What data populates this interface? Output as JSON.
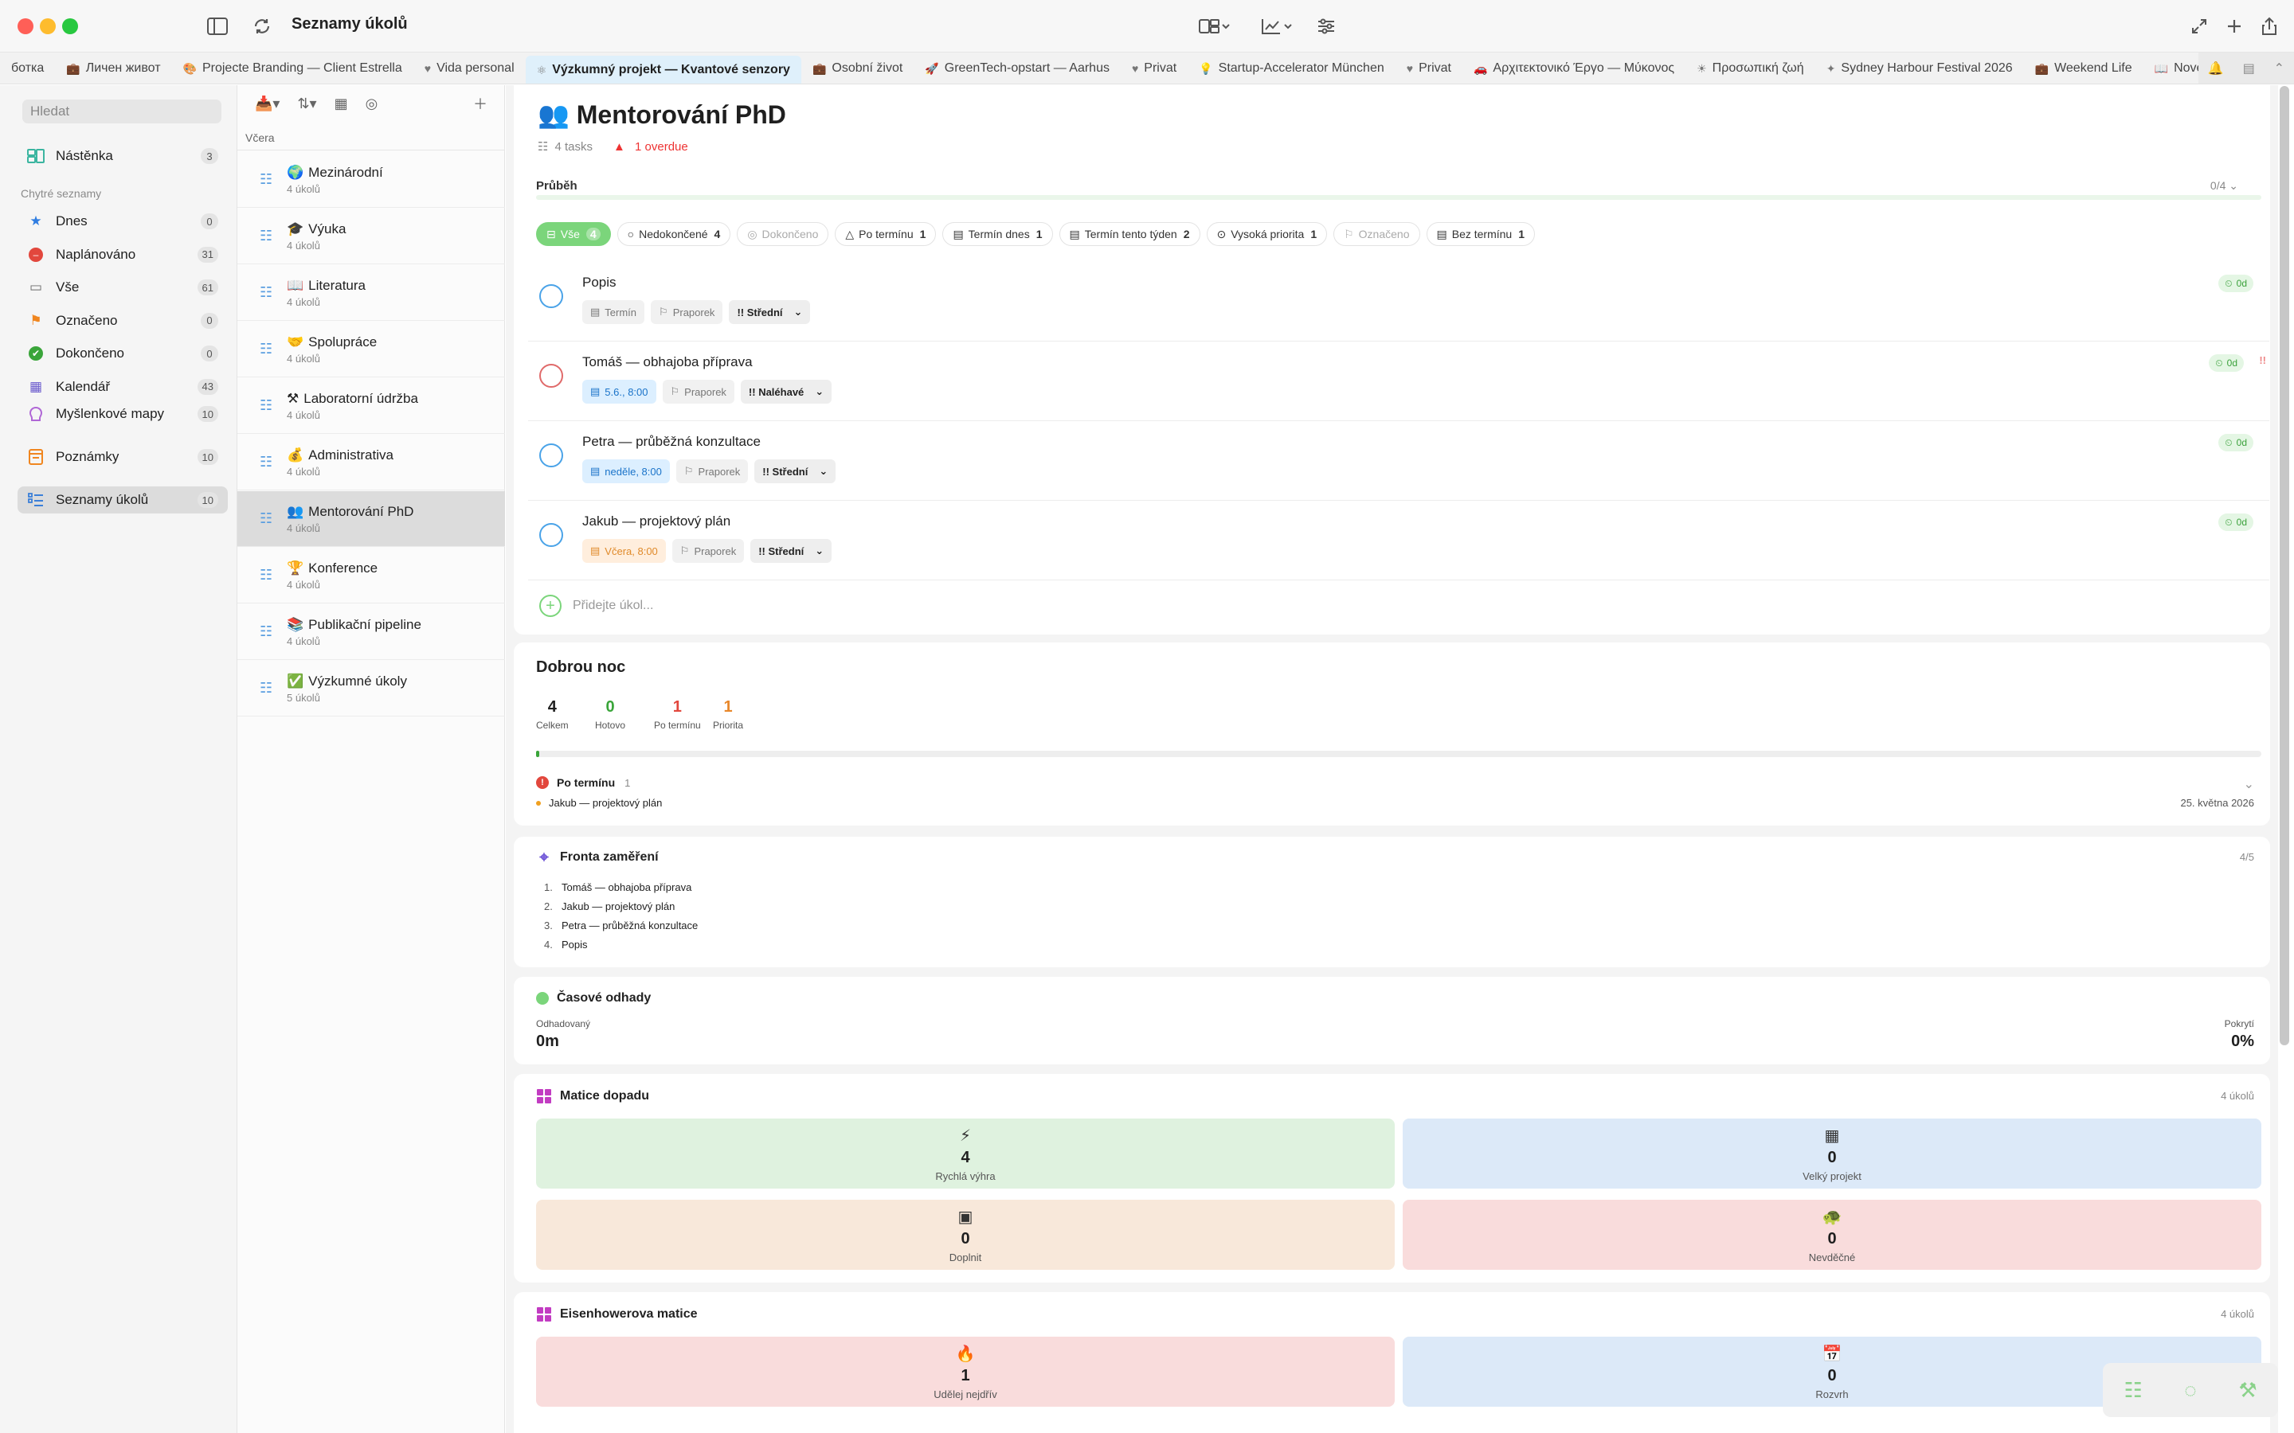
{
  "window": {
    "title": "Seznamy úkolů"
  },
  "tabs": [
    {
      "label": "ботка",
      "icon": ""
    },
    {
      "label": "Личен живот",
      "icon": "briefcase-icon"
    },
    {
      "label": "Projecte Branding — Client Estrella",
      "icon": "palette-icon"
    },
    {
      "label": "Vida personal",
      "icon": "heart-icon"
    },
    {
      "label": "Výzkumný projekt — Kvantové senzory",
      "icon": "atom-icon",
      "active": true
    },
    {
      "label": "Osobní život",
      "icon": "briefcase-icon"
    },
    {
      "label": "GreenTech-opstart — Aarhus",
      "icon": "rocket-icon"
    },
    {
      "label": "Privat",
      "icon": "heart-icon"
    },
    {
      "label": "Startup-Accelerator München",
      "icon": "bulb-icon"
    },
    {
      "label": "Privat",
      "icon": "heart-icon"
    },
    {
      "label": "Αρχιτεκτονικό Έργο — Μύκονος",
      "icon": "car-icon"
    },
    {
      "label": "Προσωπική ζωή",
      "icon": "sun-icon"
    },
    {
      "label": "Sydney Harbour Festival 2026",
      "icon": "sparkle-icon"
    },
    {
      "label": "Weekend Life",
      "icon": "briefcase-icon"
    },
    {
      "label": "Novel Draf",
      "icon": "book-icon"
    }
  ],
  "sidebar": {
    "search_placeholder": "Hledat",
    "top": {
      "label": "Nástěnka",
      "count": "3"
    },
    "section_label": "Chytré seznamy",
    "smart": [
      {
        "label": "Dnes",
        "count": "0",
        "color": "#2f7de1"
      },
      {
        "label": "Naplánováno",
        "count": "31",
        "color": "#e2473d"
      },
      {
        "label": "Vše",
        "count": "61",
        "color": "#6b6b6b"
      },
      {
        "label": "Označeno",
        "count": "0",
        "color": "#f0861f"
      },
      {
        "label": "Dokončeno",
        "count": "0",
        "color": "#3aa53a"
      },
      {
        "label": "Kalendář",
        "count": "43",
        "color": "#6a5acd"
      }
    ],
    "extra": [
      {
        "label": "Myšlenkové mapy",
        "count": "10"
      },
      {
        "label": "Poznámky",
        "count": "10"
      },
      {
        "label": "Seznamy úkolů",
        "count": "10"
      }
    ]
  },
  "list": {
    "day_label": "Včera",
    "items": [
      {
        "emoji": "🌍",
        "title": "Mezinárodní",
        "sub": "4 úkolů"
      },
      {
        "emoji": "🎓",
        "title": "Výuka",
        "sub": "4 úkolů"
      },
      {
        "emoji": "📖",
        "title": "Literatura",
        "sub": "4 úkolů"
      },
      {
        "emoji": "🤝",
        "title": "Spolupráce",
        "sub": "4 úkolů"
      },
      {
        "emoji": "⚒",
        "title": "Laboratorní údržba",
        "sub": "4 úkolů"
      },
      {
        "emoji": "💰",
        "title": "Administrativa",
        "sub": "4 úkolů"
      },
      {
        "emoji": "👥",
        "title": "Mentorování PhD",
        "sub": "4 úkolů"
      },
      {
        "emoji": "🏆",
        "title": "Konference",
        "sub": "4 úkolů"
      },
      {
        "emoji": "📚",
        "title": "Publikační pipeline",
        "sub": "4 úkolů"
      },
      {
        "emoji": "✅",
        "title": "Výzkumné úkoly",
        "sub": "5 úkolů"
      }
    ]
  },
  "main": {
    "emoji": "👥",
    "title": "Mentorování PhD",
    "tasks_count": "4 tasks",
    "overdue": "1 overdue",
    "progress_label": "Průběh",
    "progress_count": "0/4",
    "filters": [
      {
        "label": "Vše",
        "count": "4"
      },
      {
        "label": "Nedokončené",
        "count": "4"
      },
      {
        "label": "Dokončeno",
        "count": ""
      },
      {
        "label": "Po termínu",
        "count": "1"
      },
      {
        "label": "Termín dnes",
        "count": "1"
      },
      {
        "label": "Termín tento týden",
        "count": "2"
      },
      {
        "label": "Vysoká priorita",
        "count": "1"
      },
      {
        "label": "Označeno",
        "count": ""
      },
      {
        "label": "Bez termínu",
        "count": "1"
      }
    ],
    "tasks": [
      {
        "title": "Popis",
        "date": "Termín",
        "tag": "Praporek",
        "priority": "!! Střední",
        "badge": "0d",
        "flag": ""
      },
      {
        "title": "Tomáš — obhajoba příprava",
        "date": "5.6., 8:00",
        "tag": "Praporek",
        "priority": "!! Naléhavé",
        "badge": "0d",
        "flag": "!!"
      },
      {
        "title": "Petra — průběžná konzultace",
        "date": "neděle, 8:00",
        "tag": "Praporek",
        "priority": "!! Střední",
        "badge": "0d",
        "flag": ""
      },
      {
        "title": "Jakub — projektový plán",
        "date": "Včera, 8:00",
        "tag": "Praporek",
        "priority": "!! Střední",
        "badge": "0d",
        "flag": ""
      }
    ],
    "add_placeholder": "Přidejte úkol..."
  },
  "summary": {
    "title": "Dobrou noc",
    "stats": [
      {
        "value": "4",
        "label": "Celkem",
        "color": "#1f1f1f"
      },
      {
        "value": "0",
        "label": "Hotovo",
        "color": "#3aa53a"
      },
      {
        "value": "1",
        "label": "Po termínu",
        "color": "#e2473d"
      },
      {
        "value": "1",
        "label": "Priorita",
        "color": "#e8872a"
      }
    ],
    "overdue_label": "Po termínu",
    "overdue_count": "1",
    "overdue_item": "Jakub — projektový plán",
    "overdue_date": "25. května 2026"
  },
  "focus": {
    "title": "Fronta zaměření",
    "count": "4/5",
    "items": [
      "1.",
      "Tomáš — obhajoba příprava",
      "2.",
      "Jakub — projektový plán",
      "3.",
      "Petra — průběžná konzultace",
      "4.",
      "Popis"
    ]
  },
  "estimates": {
    "title": "Časové odhady",
    "left_label": "Odhadovaný",
    "left_value": "0m",
    "right_label": "Pokrytí",
    "right_value": "0%"
  },
  "impact": {
    "title": "Matice dopadu",
    "count": "4 úkolů",
    "cells": [
      {
        "icon": "⚡",
        "value": "4",
        "label": "Rychlá výhra",
        "bg": "#dff2df"
      },
      {
        "icon": "▦",
        "value": "0",
        "label": "Velký projekt",
        "bg": "#dce9f8"
      },
      {
        "icon": "▣",
        "value": "0",
        "label": "Doplnit",
        "bg": "#f8e8da"
      },
      {
        "icon": "🐢",
        "value": "0",
        "label": "Nevděčné",
        "bg": "#f9dcdc"
      }
    ]
  },
  "eisenhower": {
    "title": "Eisenhowerova matice",
    "count": "4 úkolů",
    "cells": [
      {
        "icon": "🔥",
        "value": "1",
        "label": "Udělej nejdřív",
        "bg": "#f9dcdc"
      },
      {
        "icon": "📅",
        "value": "0",
        "label": "Rozvrh",
        "bg": "#dce9f8"
      }
    ]
  }
}
